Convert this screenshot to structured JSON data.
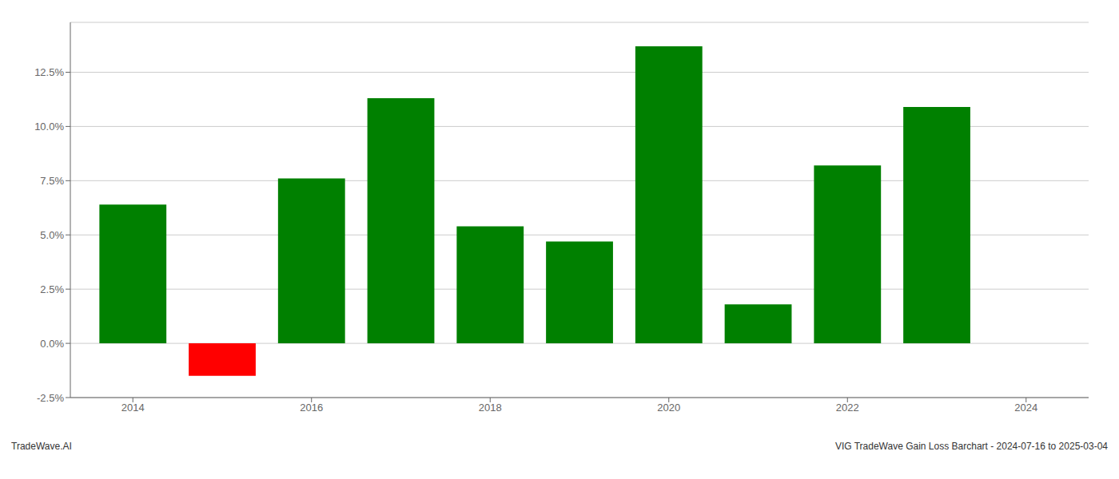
{
  "chart_data": {
    "type": "bar",
    "x": [
      2014,
      2015,
      2016,
      2017,
      2018,
      2019,
      2020,
      2021,
      2022,
      2023
    ],
    "values": [
      0.064,
      -0.015,
      0.076,
      0.113,
      0.054,
      0.047,
      0.137,
      0.018,
      0.082,
      0.109
    ],
    "colors": [
      "#008000",
      "#ff0000",
      "#008000",
      "#008000",
      "#008000",
      "#008000",
      "#008000",
      "#008000",
      "#008000",
      "#008000"
    ],
    "xlim": [
      2013.3,
      2024.7
    ],
    "xticks": [
      2014,
      2016,
      2018,
      2020,
      2022,
      2024
    ],
    "ylim": [
      -0.025,
      0.148
    ],
    "yticks": [
      {
        "value": -0.025,
        "label": "-2.5%"
      },
      {
        "value": 0,
        "label": "0.0%"
      },
      {
        "value": 0.025,
        "label": "2.5%"
      },
      {
        "value": 0.05,
        "label": "5.0%"
      },
      {
        "value": 0.075,
        "label": "7.5%"
      },
      {
        "value": 0.1,
        "label": "10.0%"
      },
      {
        "value": 0.125,
        "label": "12.5%"
      }
    ],
    "grid": true,
    "annotations": [
      "TradeWave.AI",
      "VIG TradeWave Gain Loss Barchart - 2024-07-16 to 2025-03-04"
    ]
  }
}
